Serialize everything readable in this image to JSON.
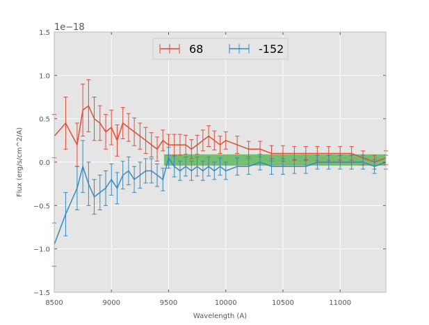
{
  "chart_data": {
    "type": "line",
    "xlabel": "Wavelength (A)",
    "ylabel": "Flux (erg/s/cm^2/A)",
    "y_offset_label": "1e−18",
    "xlim": [
      8500,
      11400
    ],
    "ylim": [
      -1.5,
      1.5
    ],
    "x_ticks": [
      8500,
      9000,
      9500,
      10000,
      10500,
      11000
    ],
    "x_tick_labels": [
      "8500",
      "9000",
      "9500",
      "10000",
      "10500",
      "11000"
    ],
    "y_ticks": [
      -1.5,
      -1.0,
      -0.5,
      0.0,
      0.5,
      1.0,
      1.5
    ],
    "y_tick_labels": [
      "−1.5",
      "−1.0",
      "−0.5",
      "0.0",
      "0.5",
      "1.0",
      "1.5"
    ],
    "grid": true,
    "legend_position": "top-center",
    "band": {
      "x_start": 9460,
      "x_end": 11400,
      "y_low": 0.0,
      "y_high": 0.05,
      "color": "#4daf4a"
    },
    "series": [
      {
        "name": "68",
        "color": "#e24a33",
        "x": [
          8500,
          8600,
          8700,
          8750,
          8800,
          8850,
          8900,
          8950,
          9000,
          9050,
          9100,
          9150,
          9200,
          9250,
          9300,
          9350,
          9400,
          9450,
          9500,
          9550,
          9600,
          9650,
          9700,
          9750,
          9800,
          9850,
          9900,
          9950,
          10000,
          10100,
          10200,
          10300,
          10400,
          10500,
          10600,
          10700,
          10800,
          10900,
          11000,
          11100,
          11200,
          11300,
          11400
        ],
        "y": [
          0.3,
          0.45,
          0.2,
          0.6,
          0.65,
          0.5,
          0.45,
          0.35,
          0.4,
          0.25,
          0.45,
          0.4,
          0.35,
          0.3,
          0.25,
          0.2,
          0.15,
          0.25,
          0.2,
          0.2,
          0.2,
          0.2,
          0.15,
          0.2,
          0.25,
          0.3,
          0.25,
          0.2,
          0.25,
          0.2,
          0.15,
          0.15,
          0.1,
          0.1,
          0.1,
          0.1,
          0.1,
          0.1,
          0.1,
          0.1,
          0.05,
          0.0,
          0.05
        ],
        "err": [
          0.25,
          0.3,
          0.25,
          0.3,
          0.3,
          0.25,
          0.2,
          0.2,
          0.2,
          0.18,
          0.18,
          0.16,
          0.16,
          0.15,
          0.15,
          0.14,
          0.14,
          0.12,
          0.12,
          0.12,
          0.12,
          0.11,
          0.11,
          0.11,
          0.12,
          0.12,
          0.11,
          0.1,
          0.1,
          0.1,
          0.09,
          0.09,
          0.09,
          0.09,
          0.08,
          0.08,
          0.08,
          0.08,
          0.08,
          0.08,
          0.08,
          0.08,
          0.08
        ]
      },
      {
        "name": "-152",
        "color": "#348abd",
        "x": [
          8500,
          8600,
          8700,
          8750,
          8800,
          8850,
          8900,
          8950,
          9000,
          9050,
          9100,
          9150,
          9200,
          9250,
          9300,
          9350,
          9400,
          9450,
          9500,
          9550,
          9600,
          9650,
          9700,
          9750,
          9800,
          9850,
          9900,
          9950,
          10000,
          10100,
          10200,
          10300,
          10400,
          10500,
          10600,
          10700,
          10800,
          10900,
          11000,
          11100,
          11200,
          11300,
          11400
        ],
        "y": [
          -0.95,
          -0.6,
          -0.3,
          -0.05,
          -0.25,
          -0.4,
          -0.35,
          -0.3,
          -0.2,
          -0.3,
          -0.15,
          -0.1,
          -0.2,
          -0.15,
          -0.1,
          -0.1,
          -0.15,
          -0.2,
          0.05,
          -0.05,
          -0.1,
          -0.05,
          -0.1,
          -0.05,
          -0.1,
          -0.05,
          -0.1,
          -0.05,
          -0.1,
          -0.05,
          -0.05,
          0.0,
          -0.05,
          -0.05,
          -0.05,
          -0.05,
          0.0,
          0.0,
          0.0,
          0.0,
          0.0,
          -0.05,
          0.0
        ],
        "err": [
          0.25,
          0.25,
          0.25,
          0.3,
          0.25,
          0.2,
          0.2,
          0.2,
          0.18,
          0.18,
          0.16,
          0.16,
          0.15,
          0.15,
          0.14,
          0.14,
          0.13,
          0.13,
          0.12,
          0.12,
          0.11,
          0.11,
          0.11,
          0.11,
          0.11,
          0.11,
          0.1,
          0.1,
          0.1,
          0.1,
          0.09,
          0.09,
          0.09,
          0.09,
          0.08,
          0.08,
          0.08,
          0.08,
          0.08,
          0.08,
          0.08,
          0.08,
          0.08
        ]
      }
    ]
  }
}
